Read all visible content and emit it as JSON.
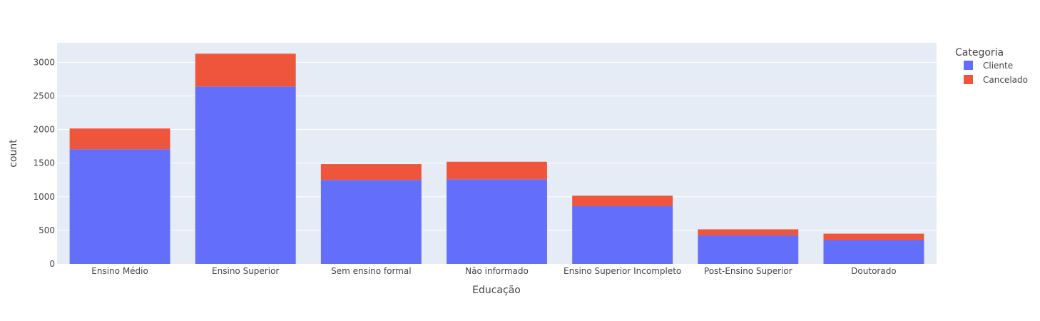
{
  "chart_data": {
    "type": "bar",
    "barmode": "stack",
    "categories": [
      "Ensino Médio",
      "Ensino Superior",
      "Sem ensino formal",
      "Não informado",
      "Ensino Superior Incompleto",
      "Post-Ensino Superior",
      "Doutorado"
    ],
    "series": [
      {
        "name": "Cliente",
        "color": "#636efa",
        "values": [
          1707,
          2640,
          1250,
          1260,
          860,
          425,
          355
        ]
      },
      {
        "name": "Cancelado",
        "color": "#ef553b",
        "values": [
          308,
          488,
          235,
          260,
          155,
          90,
          95
        ]
      }
    ],
    "xlabel": "Educação",
    "ylabel": "count",
    "ylim": [
      0,
      3290
    ],
    "yticks": [
      0,
      500,
      1000,
      1500,
      2000,
      2500,
      3000
    ],
    "legend_title": "Categoria",
    "legend_position": "top-right",
    "grid": true,
    "plot_background": "#e5ecf6"
  }
}
